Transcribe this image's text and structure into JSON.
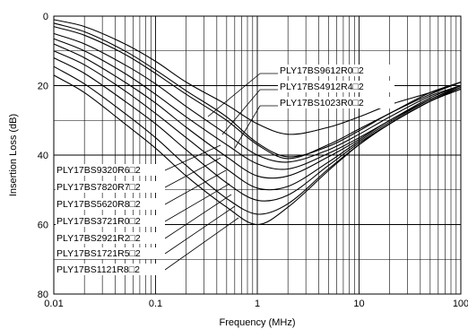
{
  "chart_data": {
    "type": "line",
    "xlabel": "Frequency (MHz)",
    "ylabel": "Insertion Loss (dB)",
    "x_scale": "log",
    "xlim": [
      0.01,
      100
    ],
    "ylim": [
      0,
      80
    ],
    "y_inverted": true,
    "grid": true,
    "x_ticks": [
      0.01,
      0.1,
      1,
      10,
      100
    ],
    "x_tick_labels": [
      "0.01",
      "0.1",
      "1",
      "10",
      "100"
    ],
    "y_ticks": [
      0,
      20,
      40,
      60,
      80
    ],
    "y_tick_labels": [
      "0",
      "20",
      "40",
      "60",
      "80"
    ],
    "series": [
      {
        "name": "PLY17BS9612R0□2",
        "x": [
          0.01,
          0.02,
          0.05,
          0.1,
          0.2,
          0.5,
          1,
          2,
          5,
          10,
          20,
          50,
          100
        ],
        "y": [
          1,
          3,
          8,
          13,
          19,
          25.5,
          31,
          34,
          32,
          29,
          25.5,
          22,
          19
        ]
      },
      {
        "name": "PLY17BS4912R4□2",
        "x": [
          0.01,
          0.02,
          0.05,
          0.1,
          0.2,
          0.5,
          1,
          2,
          5,
          10,
          20,
          50,
          100
        ],
        "y": [
          2,
          4.5,
          10,
          15.5,
          21.5,
          29,
          36.5,
          40.5,
          37.5,
          33,
          28,
          22.5,
          19
        ]
      },
      {
        "name": "PLY17BS1023R0□2",
        "x": [
          0.01,
          0.02,
          0.05,
          0.1,
          0.2,
          0.5,
          1,
          2,
          5,
          10,
          20,
          50,
          100
        ],
        "y": [
          3,
          5.5,
          11,
          16.5,
          22.5,
          30,
          37,
          41,
          37,
          32.5,
          28,
          22,
          19
        ]
      },
      {
        "name": "PLY17BS9320R6□2",
        "x": [
          0.01,
          0.02,
          0.05,
          0.1,
          0.2,
          0.5,
          1,
          2,
          5,
          10,
          20,
          50,
          100
        ],
        "y": [
          5,
          8,
          14,
          19.5,
          26,
          34,
          40,
          42,
          38.5,
          34,
          29,
          23,
          20
        ]
      },
      {
        "name": "PLY17BS7820R7□2",
        "x": [
          0.01,
          0.02,
          0.05,
          0.1,
          0.2,
          0.5,
          1,
          2,
          5,
          10,
          20,
          50,
          100
        ],
        "y": [
          6.5,
          10,
          16.5,
          22.5,
          29,
          37,
          42.5,
          44,
          39.5,
          35,
          30,
          23.5,
          20
        ]
      },
      {
        "name": "PLY17BS5620R8□2",
        "x": [
          0.01,
          0.02,
          0.05,
          0.1,
          0.2,
          0.5,
          1,
          2,
          5,
          10,
          20,
          50,
          100
        ],
        "y": [
          8,
          12,
          19,
          25,
          32,
          40.5,
          46,
          46,
          40.5,
          35.5,
          30,
          24,
          20
        ]
      },
      {
        "name": "PLY17BS3721R0□2",
        "x": [
          0.01,
          0.02,
          0.05,
          0.1,
          0.2,
          0.5,
          1,
          2,
          5,
          10,
          20,
          50,
          100
        ],
        "y": [
          10,
          14,
          21.5,
          28,
          35,
          44,
          49.5,
          49,
          42,
          36,
          30.5,
          24,
          20.5
        ]
      },
      {
        "name": "PLY17BS2921R2□2",
        "x": [
          0.01,
          0.02,
          0.05,
          0.1,
          0.2,
          0.5,
          1,
          2,
          5,
          10,
          20,
          50,
          100
        ],
        "y": [
          12,
          16.5,
          24.5,
          31,
          38.5,
          48,
          53,
          51.5,
          43,
          36.5,
          31,
          24.5,
          20.5
        ]
      },
      {
        "name": "PLY17BS1721R5□2",
        "x": [
          0.01,
          0.02,
          0.05,
          0.1,
          0.2,
          0.5,
          1,
          2,
          5,
          10,
          20,
          50,
          100
        ],
        "y": [
          14.5,
          19.5,
          28,
          35,
          43,
          52.5,
          57,
          54,
          44,
          37,
          31,
          24.5,
          21
        ]
      },
      {
        "name": "PLY17BS1121R8□2",
        "x": [
          0.01,
          0.02,
          0.05,
          0.1,
          0.2,
          0.5,
          1,
          2,
          5,
          10,
          20,
          50,
          100
        ],
        "y": [
          17,
          22,
          31,
          38,
          46,
          55,
          60,
          55,
          44.5,
          37,
          31,
          24.5,
          21
        ]
      }
    ],
    "labels_upper_right": [
      "PLY17BS9612R0□2",
      "PLY17BS4912R4□2",
      "PLY17BS1023R0□2"
    ],
    "labels_lower_left": [
      "PLY17BS9320R6□2",
      "PLY17BS7820R7□2",
      "PLY17BS5620R8□2",
      "PLY17BS3721R0□2",
      "PLY17BS2921R2□2",
      "PLY17BS1721R5□2",
      "PLY17BS1121R8□2"
    ]
  }
}
